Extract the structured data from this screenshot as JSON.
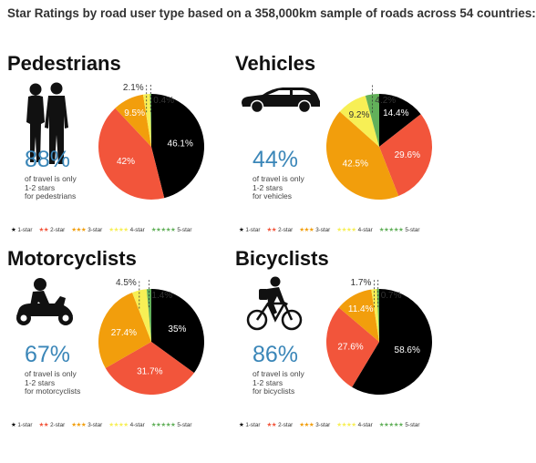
{
  "title": "Star Ratings by road user type based on a 358,000km sample of roads across 54 countries:",
  "colors": {
    "1-star": "#000000",
    "2-star": "#f2553b",
    "3-star": "#f29e0c",
    "4-star": "#f7ef55",
    "5-star": "#62b05a",
    "accent": "#3a86b8"
  },
  "legend": [
    {
      "stars": "★",
      "label": "1-star",
      "color_key": "1-star"
    },
    {
      "stars": "★★",
      "label": "2-star",
      "color_key": "2-star"
    },
    {
      "stars": "★★★",
      "label": "3-star",
      "color_key": "3-star"
    },
    {
      "stars": "★★★★",
      "label": "4-star",
      "color_key": "4-star"
    },
    {
      "stars": "★★★★★",
      "label": "5-star",
      "color_key": "5-star"
    }
  ],
  "panels": [
    {
      "name": "Pedestrians",
      "icon": "pedestrians-icon",
      "big_pct": "88%",
      "desc": "of travel is only\n1-2 stars\nfor pedestrians"
    },
    {
      "name": "Vehicles",
      "icon": "car-icon",
      "big_pct": "44%",
      "desc": "of travel is only\n1-2 stars\nfor vehicles"
    },
    {
      "name": "Motorcyclists",
      "icon": "motorcycle-icon",
      "big_pct": "67%",
      "desc": "of travel is only\n1-2 stars\nfor motorcyclists"
    },
    {
      "name": "Bicyclists",
      "icon": "bicycle-icon",
      "big_pct": "86%",
      "desc": "of travel is only\n1-2 stars\nfor bicyclists"
    }
  ],
  "chart_data": [
    {
      "type": "pie",
      "title": "Pedestrians",
      "categories": [
        "1-star",
        "2-star",
        "3-star",
        "4-star",
        "5-star"
      ],
      "values": [
        46.1,
        42,
        9.5,
        2.1,
        0.4
      ],
      "labels": [
        "46.1%",
        "42%",
        "9.5%",
        "2.1%",
        "0.4%"
      ]
    },
    {
      "type": "pie",
      "title": "Vehicles",
      "categories": [
        "1-star",
        "2-star",
        "3-star",
        "4-star",
        "5-star"
      ],
      "values": [
        14.4,
        29.6,
        42.5,
        9.2,
        4.2
      ],
      "labels": [
        "14.4%",
        "29.6%",
        "42.5%",
        "9.2%",
        "4.2%"
      ]
    },
    {
      "type": "pie",
      "title": "Motorcyclists",
      "categories": [
        "1-star",
        "2-star",
        "3-star",
        "4-star",
        "5-star"
      ],
      "values": [
        35,
        31.7,
        27.4,
        4.5,
        1.4
      ],
      "labels": [
        "35%",
        "31.7%",
        "27.4%",
        "4.5%",
        "1.4%"
      ]
    },
    {
      "type": "pie",
      "title": "Bicyclists",
      "categories": [
        "1-star",
        "2-star",
        "3-star",
        "4-star",
        "5-star"
      ],
      "values": [
        58.6,
        27.6,
        11.4,
        1.7,
        0.7
      ],
      "labels": [
        "58.6%",
        "27.6%",
        "11.4%",
        "1.7%",
        "0.7%"
      ]
    }
  ]
}
